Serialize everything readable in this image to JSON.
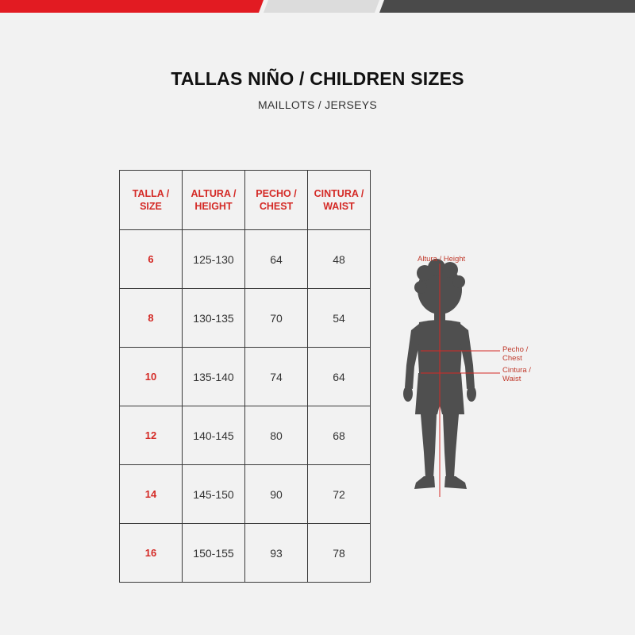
{
  "colors": {
    "accent": "#d42a26",
    "band_mid": "#dcdcdc",
    "band_dark": "#4a4a4a"
  },
  "title": "TALLAS NIÑO / CHILDREN SIZES",
  "subtitle": "MAILLOTS / JERSEYS",
  "table": {
    "headers": [
      [
        "TALLA /",
        "SIZE"
      ],
      [
        "ALTURA /",
        "HEIGHT"
      ],
      [
        "PECHO /",
        "CHEST"
      ],
      [
        "CINTURA /",
        "WAIST"
      ]
    ],
    "rows": [
      {
        "size": "6",
        "height": "125-130",
        "chest": "64",
        "waist": "48"
      },
      {
        "size": "8",
        "height": "130-135",
        "chest": "70",
        "waist": "54"
      },
      {
        "size": "10",
        "height": "135-140",
        "chest": "74",
        "waist": "64"
      },
      {
        "size": "12",
        "height": "140-145",
        "chest": "80",
        "waist": "68"
      },
      {
        "size": "14",
        "height": "145-150",
        "chest": "90",
        "waist": "72"
      },
      {
        "size": "16",
        "height": "150-155",
        "chest": "93",
        "waist": "78"
      }
    ]
  },
  "figure": {
    "icon": "child-silhouette-icon",
    "height_label": "Altura / Height",
    "chest_label": [
      "Pecho /",
      "Chest"
    ],
    "waist_label": [
      "Cintura /",
      "Waist"
    ]
  }
}
